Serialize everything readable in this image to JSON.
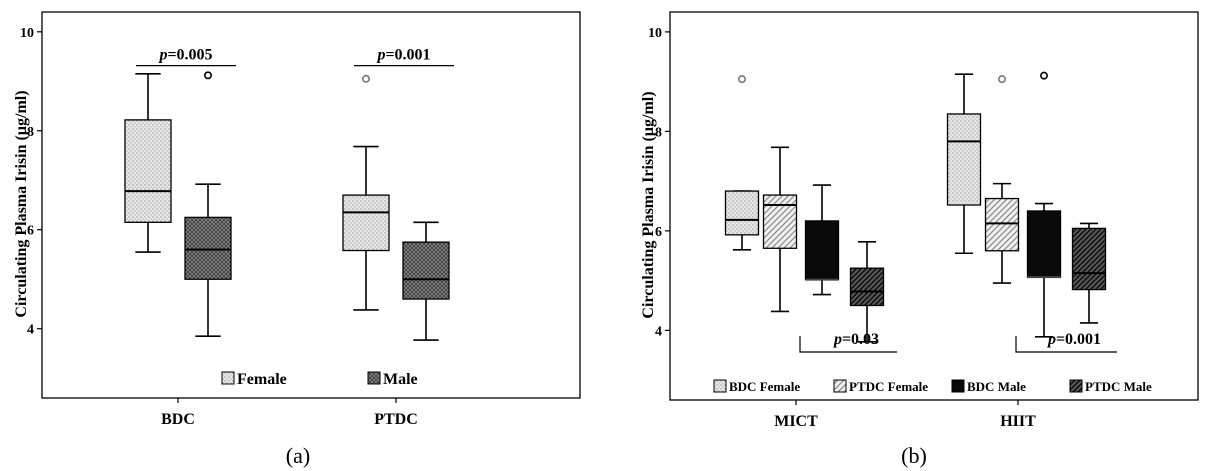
{
  "chart_data": [
    {
      "type": "box",
      "panel_label": "(a)",
      "ylabel": "Circulating Plasma Irisin (µg/ml)",
      "ylim": [
        2.6,
        10.4
      ],
      "yticks": [
        "4",
        "6",
        "8",
        "10"
      ],
      "categories": [
        "BDC",
        "PTDC"
      ],
      "series": [
        {
          "name": "Female",
          "pattern": "dots-light"
        },
        {
          "name": "Male",
          "pattern": "cross-dark"
        }
      ],
      "boxes": [
        {
          "category": "BDC",
          "series": "Female",
          "min": 5.55,
          "q1": 6.15,
          "median": 6.78,
          "q3": 8.22,
          "max": 9.15,
          "outliers": []
        },
        {
          "category": "BDC",
          "series": "Male",
          "min": 3.85,
          "q1": 5.0,
          "median": 5.6,
          "q3": 6.25,
          "max": 6.92,
          "outliers": [
            9.12
          ]
        },
        {
          "category": "PTDC",
          "series": "Female",
          "min": 4.38,
          "q1": 5.58,
          "median": 6.35,
          "q3": 6.7,
          "max": 7.68,
          "outliers": [
            9.05
          ]
        },
        {
          "category": "PTDC",
          "series": "Male",
          "min": 3.77,
          "q1": 4.6,
          "median": 5.0,
          "q3": 5.75,
          "max": 6.15,
          "outliers": []
        }
      ],
      "annotations": [
        {
          "text": "p=0.005",
          "italic": "p",
          "rest": "=0.005",
          "category": "BDC",
          "y": 9.6
        },
        {
          "text": "p=0.001",
          "italic": "p",
          "rest": "=0.001",
          "category": "PTDC",
          "y": 9.6
        }
      ],
      "legend": [
        "Female",
        "Male"
      ],
      "legend_position": "bottom-right inside"
    },
    {
      "type": "box",
      "panel_label": "(b)",
      "ylabel": "Circulating Plasma Irisin (µg/ml)",
      "ylim": [
        2.6,
        10.4
      ],
      "yticks": [
        "4",
        "6",
        "8",
        "10"
      ],
      "categories": [
        "MICT",
        "HIIT"
      ],
      "series": [
        {
          "name": "BDC Female",
          "pattern": "dots-light"
        },
        {
          "name": "PTDC Female",
          "pattern": "diag-light"
        },
        {
          "name": "BDC Male",
          "pattern": "solid-black"
        },
        {
          "name": "PTDC Male",
          "pattern": "diag-dark"
        }
      ],
      "boxes": [
        {
          "category": "MICT",
          "series": "BDC Female",
          "min": 5.62,
          "q1": 5.92,
          "median": 6.22,
          "q3": 6.8,
          "max": 6.8,
          "outliers": [
            9.05
          ]
        },
        {
          "category": "MICT",
          "series": "PTDC Female",
          "min": 4.38,
          "q1": 5.65,
          "median": 6.52,
          "q3": 6.72,
          "max": 7.68,
          "outliers": []
        },
        {
          "category": "MICT",
          "series": "BDC Male",
          "min": 4.72,
          "q1": 5.02,
          "median": 5.02,
          "q3": 6.2,
          "max": 6.92,
          "outliers": []
        },
        {
          "category": "MICT",
          "series": "PTDC Male",
          "min": 3.77,
          "q1": 4.5,
          "median": 4.78,
          "q3": 5.25,
          "max": 5.78,
          "outliers": []
        },
        {
          "category": "HIIT",
          "series": "BDC Female",
          "min": 5.55,
          "q1": 6.52,
          "median": 7.8,
          "q3": 8.35,
          "max": 9.15,
          "outliers": []
        },
        {
          "category": "HIIT",
          "series": "PTDC Female",
          "min": 4.95,
          "q1": 5.6,
          "median": 6.15,
          "q3": 6.65,
          "max": 6.95,
          "outliers": [
            9.05
          ]
        },
        {
          "category": "HIIT",
          "series": "BDC Male",
          "min": 3.87,
          "q1": 5.07,
          "median": 5.07,
          "q3": 6.4,
          "max": 6.55,
          "outliers": [
            9.12
          ]
        },
        {
          "category": "HIIT",
          "series": "PTDC Male",
          "min": 4.15,
          "q1": 4.82,
          "median": 5.15,
          "q3": 6.05,
          "max": 6.15,
          "outliers": []
        }
      ],
      "annotations": [
        {
          "text": "p=0.03",
          "italic": "p",
          "rest": "=0.03",
          "category": "MICT",
          "y": 3.6
        },
        {
          "text": "p=0.001",
          "italic": "p",
          "rest": "=0.001",
          "category": "HIIT",
          "y": 3.6
        }
      ],
      "legend": [
        "BDC Female",
        "PTDC Female",
        "BDC Male",
        "PTDC Male"
      ],
      "legend_position": "bottom inside"
    }
  ]
}
